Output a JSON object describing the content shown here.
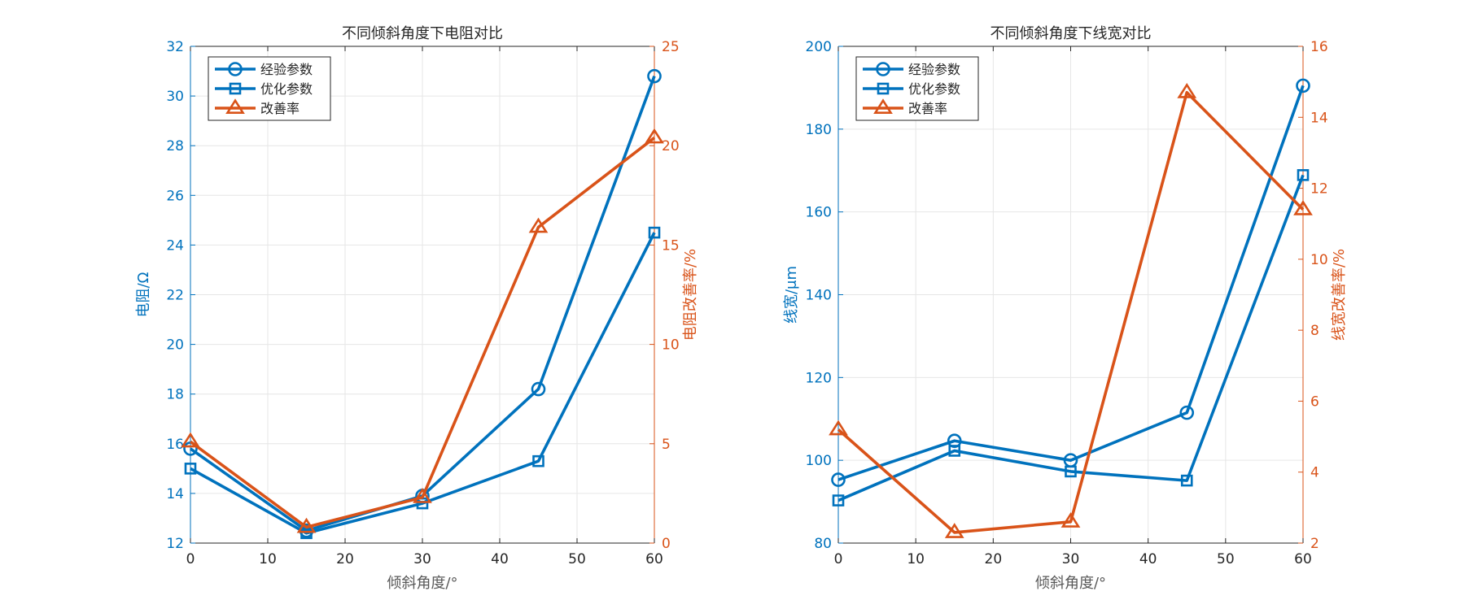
{
  "colors": {
    "blue": "#0072BD",
    "orange": "#D95319",
    "grid": "#e6e6e6",
    "text": "#262626"
  },
  "chart_data": [
    {
      "type": "line",
      "title": "不同倾斜角度下电阻对比",
      "xlabel": "倾斜角度/°",
      "ylabel_left": "电阻/Ω",
      "ylabel_right": "电阻改善率/%",
      "x": [
        0,
        15,
        30,
        45,
        60
      ],
      "xlim": [
        0,
        60
      ],
      "xticks": [
        0,
        10,
        20,
        30,
        40,
        50,
        60
      ],
      "ylim_left": [
        12,
        32
      ],
      "yticks_left": [
        12,
        14,
        16,
        18,
        20,
        22,
        24,
        26,
        28,
        30,
        32
      ],
      "ylim_right": [
        0,
        25
      ],
      "yticks_right": [
        0,
        5,
        10,
        15,
        20,
        25
      ],
      "grid": true,
      "legend_position": "top-left",
      "series": [
        {
          "name": "经验参数",
          "axis": "left",
          "marker": "circle",
          "color": "#0072BD",
          "values": [
            15.8,
            12.5,
            13.9,
            18.2,
            30.8
          ]
        },
        {
          "name": "优化参数",
          "axis": "left",
          "marker": "square",
          "color": "#0072BD",
          "values": [
            15.0,
            12.4,
            13.6,
            15.3,
            24.5
          ]
        },
        {
          "name": "改善率",
          "axis": "right",
          "marker": "triangle",
          "color": "#D95319",
          "values": [
            5.1,
            0.8,
            2.3,
            15.9,
            20.4
          ]
        }
      ]
    },
    {
      "type": "line",
      "title": "不同倾斜角度下线宽对比",
      "xlabel": "倾斜角度/°",
      "ylabel_left": "线宽/μm",
      "ylabel_right": "线宽改善率/%",
      "x": [
        0,
        15,
        30,
        45,
        60
      ],
      "xlim": [
        0,
        60
      ],
      "xticks": [
        0,
        10,
        20,
        30,
        40,
        50,
        60
      ],
      "ylim_left": [
        80,
        200
      ],
      "yticks_left": [
        80,
        100,
        120,
        140,
        160,
        180,
        200
      ],
      "ylim_right": [
        2,
        16
      ],
      "yticks_right": [
        2,
        4,
        6,
        8,
        10,
        12,
        14,
        16
      ],
      "grid": true,
      "legend_position": "top-left",
      "series": [
        {
          "name": "经验参数",
          "axis": "left",
          "marker": "circle",
          "color": "#0072BD",
          "values": [
            95.3,
            104.7,
            100.0,
            111.5,
            190.5
          ]
        },
        {
          "name": "优化参数",
          "axis": "left",
          "marker": "square",
          "color": "#0072BD",
          "values": [
            90.3,
            102.3,
            97.3,
            95.1,
            168.9
          ]
        },
        {
          "name": "改善率",
          "axis": "right",
          "marker": "triangle",
          "color": "#D95319",
          "values": [
            5.2,
            2.3,
            2.6,
            14.7,
            11.4
          ]
        }
      ]
    }
  ]
}
